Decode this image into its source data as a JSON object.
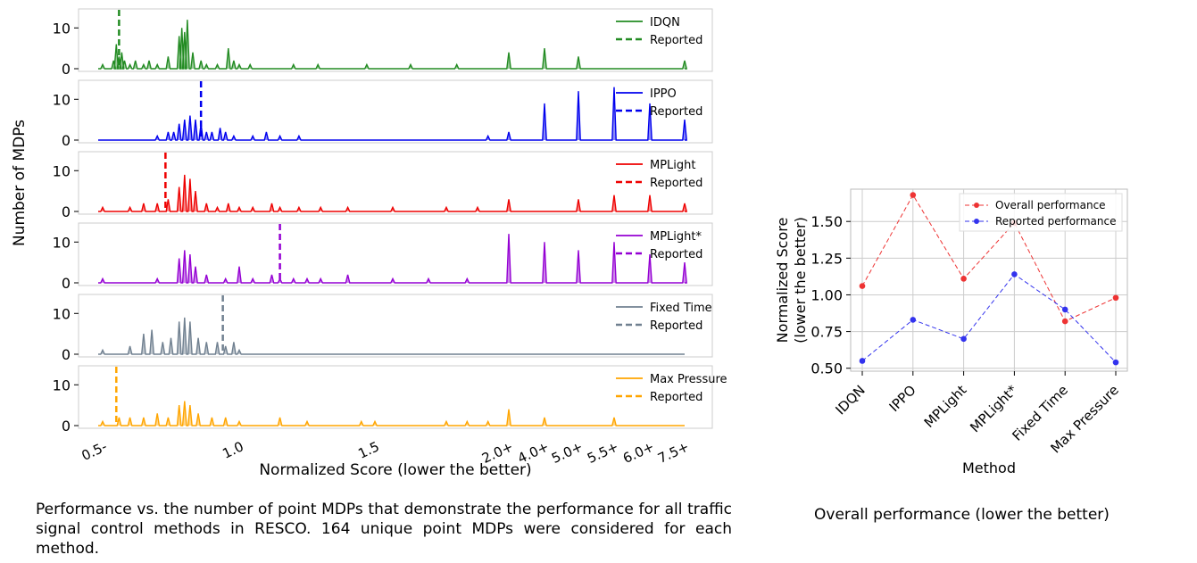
{
  "captions": {
    "left": "Performance vs. the number of point MDPs that demonstrate the performance for all traffic signal control methods in RESCO. 164 unique point MDPs were considered for each method.",
    "right": "Overall performance (lower the better)"
  },
  "chart_data": [
    {
      "type": "area",
      "subtype": "stacked-panels-histogram",
      "xlabel": "Normalized Score (lower the better)",
      "ylabel": "Number of MDPs",
      "x_tick_labels": [
        "0.5-",
        "1.0",
        "1.5",
        "2.0+",
        "4.0+",
        "5.0+",
        "5.5+",
        "6.0+",
        "7.5+"
      ],
      "y_ticks": [
        0,
        10
      ],
      "ylim": [
        0,
        14
      ],
      "legend_position": "upper right",
      "reported_label": "Reported",
      "series": [
        {
          "name": "IDQN",
          "color": "#228b22",
          "reported": 0.56,
          "peaks": [
            [
              0.5,
              1
            ],
            [
              0.54,
              2
            ],
            [
              0.55,
              6
            ],
            [
              0.56,
              3
            ],
            [
              0.57,
              4
            ],
            [
              0.58,
              2
            ],
            [
              0.6,
              1
            ],
            [
              0.62,
              2
            ],
            [
              0.65,
              1
            ],
            [
              0.67,
              2
            ],
            [
              0.7,
              1
            ],
            [
              0.74,
              3
            ],
            [
              0.78,
              8
            ],
            [
              0.79,
              10
            ],
            [
              0.8,
              9
            ],
            [
              0.81,
              12
            ],
            [
              0.83,
              4
            ],
            [
              0.86,
              2
            ],
            [
              0.88,
              1
            ],
            [
              0.92,
              1
            ],
            [
              0.96,
              5
            ],
            [
              0.98,
              2
            ],
            [
              1.0,
              1
            ],
            [
              1.04,
              1
            ],
            [
              1.2,
              1
            ],
            [
              1.29,
              1
            ],
            [
              1.47,
              1
            ],
            [
              1.6,
              1
            ],
            [
              1.75,
              1
            ],
            [
              2.0,
              4
            ],
            [
              4.0,
              5
            ],
            [
              5.0,
              3
            ],
            [
              7.5,
              2
            ]
          ]
        },
        {
          "name": "IPPO",
          "color": "#0000ee",
          "reported": 0.86,
          "peaks": [
            [
              0.7,
              1
            ],
            [
              0.74,
              2
            ],
            [
              0.76,
              2
            ],
            [
              0.78,
              4
            ],
            [
              0.8,
              5
            ],
            [
              0.82,
              6
            ],
            [
              0.84,
              5
            ],
            [
              0.86,
              4
            ],
            [
              0.88,
              2
            ],
            [
              0.9,
              2
            ],
            [
              0.93,
              3
            ],
            [
              0.95,
              2
            ],
            [
              0.98,
              1
            ],
            [
              1.05,
              1
            ],
            [
              1.1,
              2
            ],
            [
              1.15,
              1
            ],
            [
              1.22,
              1
            ],
            [
              1.9,
              1
            ],
            [
              2.0,
              2
            ],
            [
              4.0,
              9
            ],
            [
              5.0,
              12
            ],
            [
              5.5,
              13
            ],
            [
              6.0,
              9
            ],
            [
              7.5,
              5
            ]
          ]
        },
        {
          "name": "MPLight",
          "color": "#ee0000",
          "reported": 0.73,
          "peaks": [
            [
              0.5,
              1
            ],
            [
              0.6,
              1
            ],
            [
              0.65,
              2
            ],
            [
              0.7,
              2
            ],
            [
              0.74,
              3
            ],
            [
              0.78,
              6
            ],
            [
              0.8,
              9
            ],
            [
              0.82,
              8
            ],
            [
              0.84,
              5
            ],
            [
              0.88,
              2
            ],
            [
              0.92,
              1
            ],
            [
              0.96,
              2
            ],
            [
              1.0,
              1
            ],
            [
              1.05,
              1
            ],
            [
              1.12,
              2
            ],
            [
              1.15,
              1
            ],
            [
              1.22,
              1
            ],
            [
              1.3,
              1
            ],
            [
              1.4,
              1
            ],
            [
              1.55,
              1
            ],
            [
              1.7,
              1
            ],
            [
              1.85,
              1
            ],
            [
              2.0,
              3
            ],
            [
              5.0,
              3
            ],
            [
              5.5,
              4
            ],
            [
              6.0,
              4
            ],
            [
              7.5,
              2
            ]
          ]
        },
        {
          "name": "MPLight*",
          "color": "#9400d3",
          "reported": 1.15,
          "peaks": [
            [
              0.5,
              1
            ],
            [
              0.7,
              1
            ],
            [
              0.78,
              6
            ],
            [
              0.8,
              8
            ],
            [
              0.82,
              7
            ],
            [
              0.84,
              4
            ],
            [
              0.88,
              2
            ],
            [
              0.95,
              1
            ],
            [
              1.0,
              4
            ],
            [
              1.05,
              1
            ],
            [
              1.12,
              2
            ],
            [
              1.15,
              1
            ],
            [
              1.2,
              1
            ],
            [
              1.25,
              1
            ],
            [
              1.3,
              1
            ],
            [
              1.4,
              2
            ],
            [
              1.55,
              1
            ],
            [
              1.65,
              1
            ],
            [
              1.8,
              1
            ],
            [
              2.0,
              12
            ],
            [
              4.0,
              10
            ],
            [
              5.0,
              8
            ],
            [
              5.5,
              10
            ],
            [
              6.0,
              7
            ],
            [
              7.5,
              5
            ]
          ]
        },
        {
          "name": "Fixed Time",
          "color": "#708090",
          "reported": 0.94,
          "peaks": [
            [
              0.5,
              1
            ],
            [
              0.6,
              2
            ],
            [
              0.65,
              5
            ],
            [
              0.68,
              6
            ],
            [
              0.72,
              3
            ],
            [
              0.75,
              4
            ],
            [
              0.78,
              8
            ],
            [
              0.8,
              9
            ],
            [
              0.82,
              8
            ],
            [
              0.85,
              4
            ],
            [
              0.88,
              3
            ],
            [
              0.92,
              3
            ],
            [
              0.95,
              2
            ],
            [
              0.98,
              3
            ],
            [
              1.0,
              1
            ]
          ]
        },
        {
          "name": "Max Pressure",
          "color": "#ffa500",
          "reported": 0.55,
          "peaks": [
            [
              0.5,
              1
            ],
            [
              0.56,
              2
            ],
            [
              0.6,
              2
            ],
            [
              0.65,
              2
            ],
            [
              0.7,
              3
            ],
            [
              0.74,
              2
            ],
            [
              0.78,
              5
            ],
            [
              0.8,
              6
            ],
            [
              0.82,
              5
            ],
            [
              0.85,
              3
            ],
            [
              0.9,
              2
            ],
            [
              0.95,
              2
            ],
            [
              1.0,
              1
            ],
            [
              1.15,
              2
            ],
            [
              1.25,
              1
            ],
            [
              1.45,
              1
            ],
            [
              1.5,
              1
            ],
            [
              1.7,
              1
            ],
            [
              1.8,
              1
            ],
            [
              1.9,
              1
            ],
            [
              2.0,
              4
            ],
            [
              4.0,
              2
            ],
            [
              5.5,
              2
            ]
          ]
        }
      ]
    },
    {
      "type": "line",
      "xlabel": "Method",
      "ylabel": "Normalized Score\n(lower the better)",
      "categories": [
        "IDQN",
        "IPPO",
        "MPLight",
        "MPLight*",
        "Fixed Time",
        "Max Pressure"
      ],
      "ylim": [
        0.48,
        1.72
      ],
      "y_ticks": [
        0.5,
        0.75,
        1.0,
        1.25,
        1.5
      ],
      "y_tick_labels": [
        "0.50",
        "0.75",
        "1.00",
        "1.25",
        "1.50"
      ],
      "grid": true,
      "legend_position": "upper right",
      "series": [
        {
          "name": "Overall performance",
          "color": "#ee3333",
          "values": [
            1.06,
            1.68,
            1.11,
            1.49,
            0.82,
            0.98
          ]
        },
        {
          "name": "Reported performance",
          "color": "#3333ee",
          "values": [
            0.55,
            0.83,
            0.7,
            1.14,
            0.9,
            0.54
          ]
        }
      ]
    }
  ]
}
